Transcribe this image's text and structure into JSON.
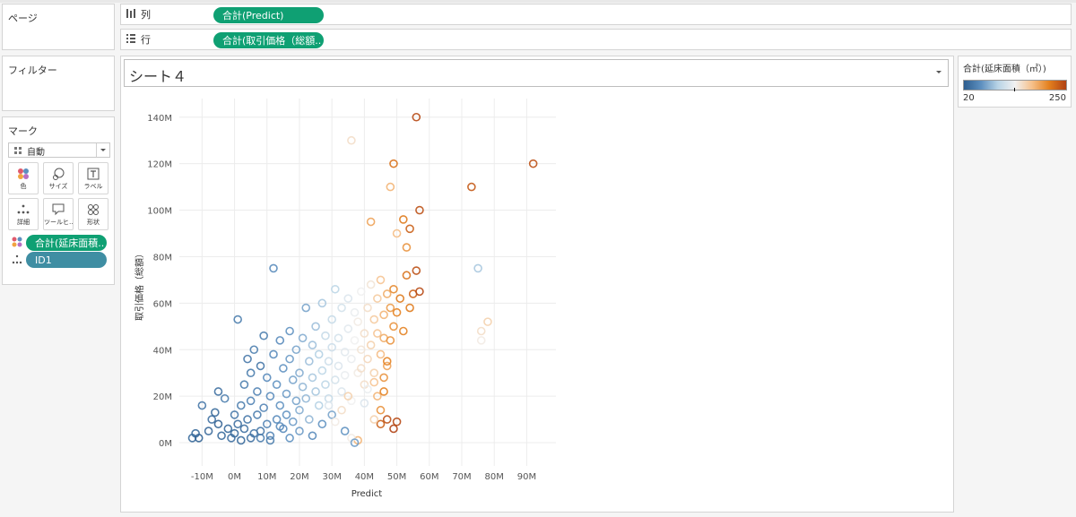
{
  "panels": {
    "pages_title": "ページ",
    "filters_title": "フィルター",
    "marks_title": "マーク"
  },
  "shelves": {
    "columns": {
      "icon": "columns-icon",
      "label": "列",
      "pill": "合計(Predict)"
    },
    "rows": {
      "icon": "rows-icon",
      "label": "行",
      "pill": "合計(取引価格（総額.."
    }
  },
  "marks": {
    "type_icon": "auto-mark-icon",
    "type_value": "自動",
    "buttons": [
      {
        "label": "色",
        "icon": "color-icon"
      },
      {
        "label": "サイズ",
        "icon": "size-icon"
      },
      {
        "label": "ラベル",
        "icon": "label-icon"
      },
      {
        "label": "詳細",
        "icon": "detail-icon"
      },
      {
        "label": "ツールヒ…",
        "icon": "tooltip-icon"
      },
      {
        "label": "形状",
        "icon": "shape-icon"
      }
    ],
    "fields": [
      {
        "icon": "color-icon",
        "label": "合計(延床面積.."
      },
      {
        "icon": "detail-icon",
        "label": "ID1"
      }
    ]
  },
  "sheet_title": "シート４",
  "legend": {
    "title": "合計(延床面積（㎡）)",
    "min_label": "20",
    "max_label": "250",
    "colors": [
      "#2e5e8f",
      "#5d8fbf",
      "#b9d4e6",
      "#f1f1f1",
      "#f6c08a",
      "#e3801e",
      "#b04113"
    ]
  },
  "chart_data": {
    "type": "scatter",
    "xlabel": "Predict",
    "ylabel": "取引価格（総額）",
    "x_ticks": [
      "-10M",
      "0M",
      "10M",
      "20M",
      "30M",
      "40M",
      "50M",
      "60M",
      "70M",
      "80M",
      "90M"
    ],
    "y_ticks": [
      "0M",
      "20M",
      "40M",
      "60M",
      "80M",
      "100M",
      "120M",
      "140M"
    ],
    "xlim": [
      -17,
      99
    ],
    "ylim": [
      -10,
      148
    ],
    "color_range": [
      20,
      250
    ],
    "marker": "open-circle",
    "points": [
      [
        -13,
        2,
        30
      ],
      [
        -12,
        4,
        30
      ],
      [
        -11,
        2,
        25
      ],
      [
        -10,
        16,
        40
      ],
      [
        -8,
        5,
        28
      ],
      [
        -7,
        10,
        35
      ],
      [
        -6,
        13,
        30
      ],
      [
        -5,
        22,
        35
      ],
      [
        -5,
        8,
        25
      ],
      [
        -4,
        3,
        30
      ],
      [
        -3,
        19,
        45
      ],
      [
        -2,
        6,
        30
      ],
      [
        -1,
        2,
        35
      ],
      [
        0,
        12,
        40
      ],
      [
        0,
        4,
        30
      ],
      [
        1,
        8,
        35
      ],
      [
        1,
        53,
        45
      ],
      [
        2,
        16,
        45
      ],
      [
        2,
        1,
        30
      ],
      [
        3,
        25,
        45
      ],
      [
        3,
        6,
        35
      ],
      [
        4,
        36,
        40
      ],
      [
        4,
        10,
        40
      ],
      [
        5,
        30,
        45
      ],
      [
        5,
        18,
        50
      ],
      [
        6,
        4,
        40
      ],
      [
        6,
        40,
        45
      ],
      [
        7,
        12,
        45
      ],
      [
        7,
        22,
        50
      ],
      [
        8,
        33,
        40
      ],
      [
        8,
        2,
        45
      ],
      [
        9,
        15,
        50
      ],
      [
        9,
        46,
        45
      ],
      [
        10,
        8,
        50
      ],
      [
        10,
        28,
        55
      ],
      [
        11,
        20,
        55
      ],
      [
        11,
        3,
        50
      ],
      [
        12,
        75,
        55
      ],
      [
        12,
        38,
        55
      ],
      [
        13,
        10,
        55
      ],
      [
        13,
        25,
        60
      ],
      [
        14,
        16,
        60
      ],
      [
        14,
        44,
        55
      ],
      [
        15,
        32,
        60
      ],
      [
        15,
        6,
        55
      ],
      [
        16,
        21,
        65
      ],
      [
        16,
        12,
        60
      ],
      [
        17,
        36,
        65
      ],
      [
        17,
        48,
        60
      ],
      [
        18,
        27,
        70
      ],
      [
        18,
        9,
        65
      ],
      [
        19,
        18,
        70
      ],
      [
        19,
        40,
        70
      ],
      [
        20,
        14,
        75
      ],
      [
        20,
        30,
        75
      ],
      [
        21,
        24,
        80
      ],
      [
        21,
        45,
        75
      ],
      [
        22,
        58,
        70
      ],
      [
        22,
        19,
        80
      ],
      [
        23,
        35,
        85
      ],
      [
        23,
        10,
        80
      ],
      [
        24,
        28,
        90
      ],
      [
        24,
        42,
        85
      ],
      [
        25,
        22,
        90
      ],
      [
        25,
        50,
        85
      ],
      [
        26,
        16,
        95
      ],
      [
        26,
        38,
        95
      ],
      [
        27,
        31,
        100
      ],
      [
        27,
        60,
        90
      ],
      [
        28,
        25,
        100
      ],
      [
        28,
        46,
        105
      ],
      [
        29,
        19,
        105
      ],
      [
        29,
        35,
        110
      ],
      [
        30,
        41,
        110
      ],
      [
        30,
        53,
        105
      ],
      [
        31,
        27,
        115
      ],
      [
        31,
        66,
        100
      ],
      [
        32,
        33,
        120
      ],
      [
        32,
        45,
        115
      ],
      [
        33,
        22,
        120
      ],
      [
        33,
        58,
        115
      ],
      [
        34,
        39,
        125
      ],
      [
        34,
        29,
        130
      ],
      [
        35,
        49,
        125
      ],
      [
        35,
        62,
        120
      ],
      [
        36,
        36,
        130
      ],
      [
        36,
        18,
        135
      ],
      [
        37,
        44,
        135
      ],
      [
        37,
        56,
        130
      ],
      [
        38,
        30,
        140
      ],
      [
        38,
        52,
        140
      ],
      [
        39,
        40,
        145
      ],
      [
        39,
        65,
        135
      ],
      [
        40,
        47,
        150
      ],
      [
        40,
        25,
        150
      ],
      [
        41,
        58,
        150
      ],
      [
        41,
        36,
        155
      ],
      [
        42,
        42,
        160
      ],
      [
        42,
        68,
        145
      ],
      [
        43,
        53,
        165
      ],
      [
        43,
        30,
        160
      ],
      [
        44,
        47,
        170
      ],
      [
        44,
        62,
        165
      ],
      [
        45,
        38,
        175
      ],
      [
        45,
        70,
        170
      ],
      [
        46,
        55,
        180
      ],
      [
        46,
        45,
        185
      ],
      [
        47,
        64,
        185
      ],
      [
        47,
        33,
        190
      ],
      [
        48,
        58,
        195
      ],
      [
        48,
        44,
        200
      ],
      [
        49,
        66,
        205
      ],
      [
        49,
        50,
        200
      ],
      [
        50,
        56,
        210
      ],
      [
        51,
        62,
        215
      ],
      [
        52,
        48,
        210
      ],
      [
        53,
        72,
        220
      ],
      [
        54,
        58,
        215
      ],
      [
        55,
        64,
        230
      ],
      [
        56,
        74,
        240
      ],
      [
        57,
        65,
        245
      ],
      [
        48,
        110,
        180
      ],
      [
        49,
        120,
        220
      ],
      [
        50,
        90,
        175
      ],
      [
        52,
        96,
        215
      ],
      [
        53,
        84,
        200
      ],
      [
        54,
        92,
        230
      ],
      [
        56,
        140,
        245
      ],
      [
        57,
        100,
        240
      ],
      [
        36,
        130,
        150
      ],
      [
        42,
        95,
        190
      ],
      [
        73,
        110,
        235
      ],
      [
        75,
        75,
        90
      ],
      [
        76,
        44,
        140
      ],
      [
        76,
        48,
        150
      ],
      [
        78,
        52,
        160
      ],
      [
        92,
        120,
        240
      ],
      [
        45,
        8,
        230
      ],
      [
        47,
        10,
        240
      ],
      [
        49,
        6,
        250
      ],
      [
        50,
        9,
        245
      ],
      [
        38,
        1,
        180
      ],
      [
        36,
        2,
        140
      ],
      [
        34,
        5,
        60
      ],
      [
        30,
        12,
        70
      ],
      [
        27,
        8,
        60
      ],
      [
        24,
        3,
        55
      ],
      [
        20,
        5,
        65
      ],
      [
        17,
        2,
        60
      ],
      [
        14,
        7,
        55
      ],
      [
        11,
        1,
        45
      ],
      [
        8,
        5,
        40
      ],
      [
        5,
        2,
        35
      ],
      [
        37,
        0,
        65
      ],
      [
        40,
        17,
        120
      ],
      [
        41,
        23,
        130
      ],
      [
        43,
        10,
        160
      ],
      [
        44,
        20,
        180
      ],
      [
        46,
        28,
        200
      ],
      [
        43,
        26,
        170
      ],
      [
        39,
        32,
        150
      ],
      [
        45,
        14,
        200
      ],
      [
        47,
        35,
        210
      ],
      [
        46,
        22,
        210
      ],
      [
        33,
        14,
        150
      ],
      [
        35,
        20,
        160
      ],
      [
        31,
        9,
        140
      ],
      [
        29,
        16,
        120
      ]
    ]
  }
}
